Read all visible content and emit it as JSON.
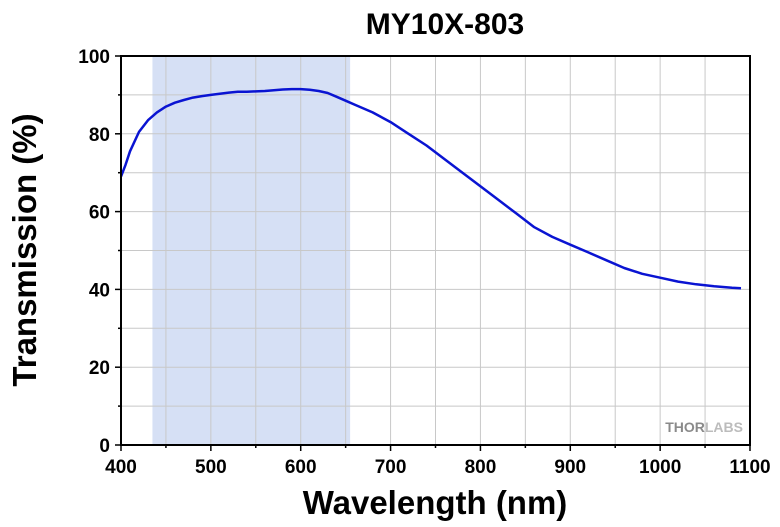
{
  "chart_data": {
    "type": "line",
    "title": "MY10X-803",
    "xlabel": "Wavelength (nm)",
    "ylabel": "Transmission (%)",
    "xlim": [
      400,
      1100
    ],
    "ylim": [
      0,
      100
    ],
    "xticks": [
      400,
      500,
      600,
      700,
      800,
      900,
      1000,
      1100
    ],
    "yticks": [
      0,
      20,
      40,
      60,
      80,
      100
    ],
    "grid": true,
    "legend": "none",
    "highlight_band": {
      "x_range": [
        435,
        655
      ],
      "color": "#d6e0f5"
    },
    "line_color": "#0a14d2",
    "series": [
      {
        "x": [
          400,
          405,
          410,
          420,
          430,
          440,
          450,
          460,
          470,
          480,
          490,
          500,
          510,
          520,
          530,
          540,
          550,
          560,
          570,
          580,
          590,
          600,
          610,
          620,
          630,
          640,
          650,
          660,
          680,
          700,
          720,
          740,
          760,
          780,
          800,
          820,
          840,
          860,
          880,
          900,
          920,
          940,
          960,
          980,
          1000,
          1020,
          1040,
          1060,
          1080,
          1090
        ],
        "y": [
          69.0,
          72.0,
          75.5,
          80.5,
          83.5,
          85.5,
          87.0,
          88.0,
          88.7,
          89.3,
          89.7,
          90.0,
          90.3,
          90.6,
          90.8,
          90.8,
          90.9,
          91.0,
          91.2,
          91.4,
          91.5,
          91.5,
          91.3,
          91.0,
          90.5,
          89.5,
          88.5,
          87.5,
          85.5,
          83.0,
          80.0,
          77.0,
          73.5,
          70.0,
          66.5,
          63.0,
          59.5,
          56.0,
          53.5,
          51.5,
          49.5,
          47.5,
          45.5,
          44.0,
          43.0,
          42.0,
          41.3,
          40.8,
          40.4,
          40.3
        ]
      }
    ]
  },
  "logo": {
    "part1": "THOR",
    "part2": "LABS"
  }
}
